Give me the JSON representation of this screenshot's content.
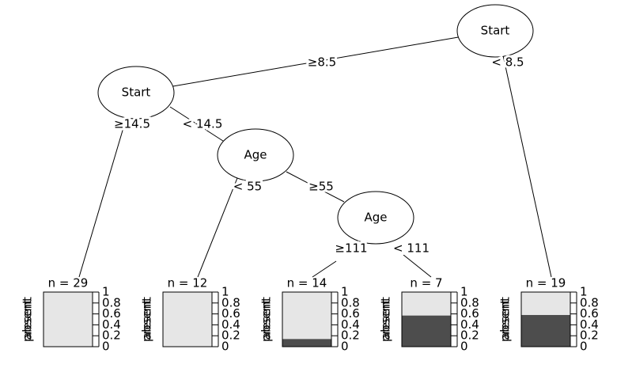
{
  "nodes": [
    {
      "label": "Start"
    },
    {
      "label": "Start"
    },
    {
      "label": "Age"
    },
    {
      "label": "Age"
    }
  ],
  "edges": [
    {
      "label": "≥8.5"
    },
    {
      "label": "< 8.5"
    },
    {
      "label": "≥14.5"
    },
    {
      "label": "< 14.5"
    },
    {
      "label": "< 55"
    },
    {
      "label": "≥55"
    },
    {
      "label": "≥111"
    },
    {
      "label": "< 111"
    }
  ],
  "leaf_axis": {
    "labels": [
      "present",
      "absent"
    ],
    "ticks": [
      0,
      0.2,
      0.4,
      0.6,
      0.8,
      1
    ]
  },
  "leaves": [
    {
      "n_label": "n = 29",
      "present": 0,
      "absent": 1
    },
    {
      "n_label": "n = 12",
      "present": 0,
      "absent": 1
    },
    {
      "n_label": "n = 14",
      "present": 0.14,
      "absent": 0.86
    },
    {
      "n_label": "n = 7",
      "present": 0.57,
      "absent": 0.43
    },
    {
      "n_label": "n = 19",
      "present": 0.58,
      "absent": 0.42
    }
  ]
}
